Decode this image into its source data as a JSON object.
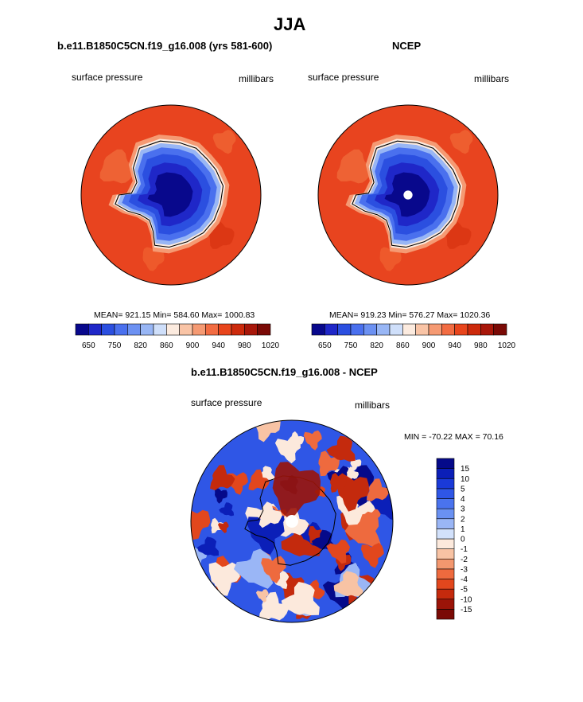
{
  "title": "JJA",
  "panels": [
    {
      "title": "b.e11.B1850C5CN.f19_g16.008 (yrs 581-600)",
      "left_label": "surface pressure",
      "right_label": "millibars",
      "stats": "MEAN= 921.15  Min= 584.60  Max= 1000.83",
      "pole_hole": false
    },
    {
      "title": "NCEP",
      "left_label": "surface pressure",
      "right_label": "millibars",
      "stats": "MEAN= 919.23  Min= 576.27  Max= 1020.36",
      "pole_hole": true
    }
  ],
  "diff": {
    "title": "b.e11.B1850C5CN.f19_g16.008 - NCEP",
    "left_label": "surface pressure",
    "right_label": "millibars",
    "minmax": "MIN = -70.22 MAX =  70.16"
  },
  "colorbar_top": {
    "colors": [
      "#08088c",
      "#1f27c8",
      "#2b4fe0",
      "#4a70ee",
      "#6c91f2",
      "#98b6f5",
      "#cfdffa",
      "#fcebdf",
      "#f9c4a6",
      "#f59a73",
      "#f26c42",
      "#e8451c",
      "#cc2a0c",
      "#a8170a",
      "#7a0a06"
    ],
    "tick_labels": [
      "650",
      "750",
      "820",
      "860",
      "900",
      "940",
      "980",
      "1020"
    ]
  },
  "colorbar_diff": {
    "colors": [
      "#050a8a",
      "#0b1fb8",
      "#1a3ad8",
      "#2f56e6",
      "#4a73ee",
      "#6a91f2",
      "#9ab6f6",
      "#d2e1fb",
      "#fce9dc",
      "#f8c3a4",
      "#f3976e",
      "#ee6a3e",
      "#e2471d",
      "#c42a0d",
      "#9b1408",
      "#7a0a05"
    ],
    "tick_labels": [
      "15",
      "10",
      "5",
      "4",
      "3",
      "2",
      "1",
      "0",
      "-1",
      "-2",
      "-3",
      "-4",
      "-5",
      "-10",
      "-15"
    ]
  },
  "colors": {
    "ocean_high": "#e8441f",
    "land_low": "#0a1a9a"
  }
}
